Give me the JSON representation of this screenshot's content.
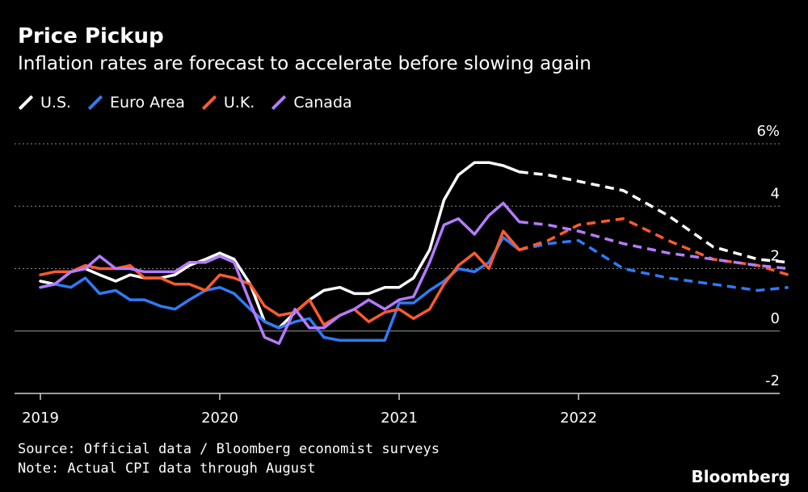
{
  "header": {
    "title": "Price Pickup",
    "subtitle": "Inflation rates are forecast to accelerate before slowing again"
  },
  "legend": [
    {
      "label": "U.S.",
      "color": "#ffffff"
    },
    {
      "label": "Euro Area",
      "color": "#2f7bf5"
    },
    {
      "label": "U.K.",
      "color": "#ff5a2e"
    },
    {
      "label": "Canada",
      "color": "#b57bff"
    }
  ],
  "footer": {
    "source": "Source: Official data / Bloomberg economist surveys",
    "note": "Note: Actual CPI data through August",
    "brand": "Bloomberg"
  },
  "chart_data": {
    "type": "line",
    "title": "Price Pickup",
    "subtitle": "Inflation rates are forecast to accelerate before slowing again",
    "xlabel": "",
    "ylabel": "",
    "xlim": [
      2019.0,
      2023.2
    ],
    "ylim": [
      -2,
      6
    ],
    "y_ticks": [
      -2,
      0,
      2,
      4,
      6
    ],
    "y_tick_labels": [
      "-2",
      "0",
      "2",
      "4",
      "6%"
    ],
    "x_ticks": [
      2019,
      2020,
      2021,
      2022
    ],
    "x_tick_labels": [
      "2019",
      "2020",
      "2021",
      "2022"
    ],
    "gridlines": "horizontal dotted",
    "legend_position": "top-left",
    "actual_through": "August 2021",
    "series": [
      {
        "name": "U.S.",
        "color": "#ffffff",
        "actual": [
          [
            2019.0,
            1.6
          ],
          [
            2019.08,
            1.5
          ],
          [
            2019.17,
            1.9
          ],
          [
            2019.25,
            2.0
          ],
          [
            2019.33,
            1.8
          ],
          [
            2019.42,
            1.6
          ],
          [
            2019.5,
            1.8
          ],
          [
            2019.58,
            1.7
          ],
          [
            2019.67,
            1.7
          ],
          [
            2019.75,
            1.8
          ],
          [
            2019.83,
            2.1
          ],
          [
            2019.92,
            2.3
          ],
          [
            2020.0,
            2.5
          ],
          [
            2020.08,
            2.3
          ],
          [
            2020.17,
            1.5
          ],
          [
            2020.25,
            0.3
          ],
          [
            2020.33,
            0.1
          ],
          [
            2020.42,
            0.6
          ],
          [
            2020.5,
            1.0
          ],
          [
            2020.58,
            1.3
          ],
          [
            2020.67,
            1.4
          ],
          [
            2020.75,
            1.2
          ],
          [
            2020.83,
            1.2
          ],
          [
            2020.92,
            1.4
          ],
          [
            2021.0,
            1.4
          ],
          [
            2021.08,
            1.7
          ],
          [
            2021.17,
            2.6
          ],
          [
            2021.25,
            4.2
          ],
          [
            2021.33,
            5.0
          ],
          [
            2021.42,
            5.4
          ],
          [
            2021.5,
            5.4
          ],
          [
            2021.58,
            5.3
          ],
          [
            2021.67,
            5.1
          ]
        ],
        "forecast": [
          [
            2021.67,
            5.1
          ],
          [
            2021.83,
            5.0
          ],
          [
            2022.0,
            4.8
          ],
          [
            2022.25,
            4.5
          ],
          [
            2022.5,
            3.7
          ],
          [
            2022.75,
            2.7
          ],
          [
            2023.0,
            2.3
          ],
          [
            2023.17,
            2.2
          ]
        ]
      },
      {
        "name": "Euro Area",
        "color": "#2f7bf5",
        "actual": [
          [
            2019.0,
            1.4
          ],
          [
            2019.08,
            1.5
          ],
          [
            2019.17,
            1.4
          ],
          [
            2019.25,
            1.7
          ],
          [
            2019.33,
            1.2
          ],
          [
            2019.42,
            1.3
          ],
          [
            2019.5,
            1.0
          ],
          [
            2019.58,
            1.0
          ],
          [
            2019.67,
            0.8
          ],
          [
            2019.75,
            0.7
          ],
          [
            2019.83,
            1.0
          ],
          [
            2019.92,
            1.3
          ],
          [
            2020.0,
            1.4
          ],
          [
            2020.08,
            1.2
          ],
          [
            2020.17,
            0.7
          ],
          [
            2020.25,
            0.3
          ],
          [
            2020.33,
            0.1
          ],
          [
            2020.42,
            0.3
          ],
          [
            2020.5,
            0.4
          ],
          [
            2020.58,
            -0.2
          ],
          [
            2020.67,
            -0.3
          ],
          [
            2020.75,
            -0.3
          ],
          [
            2020.83,
            -0.3
          ],
          [
            2020.92,
            -0.3
          ],
          [
            2021.0,
            0.9
          ],
          [
            2021.08,
            0.9
          ],
          [
            2021.17,
            1.3
          ],
          [
            2021.25,
            1.6
          ],
          [
            2021.33,
            2.0
          ],
          [
            2021.42,
            1.9
          ],
          [
            2021.5,
            2.2
          ],
          [
            2021.58,
            3.0
          ],
          [
            2021.67,
            2.6
          ]
        ],
        "forecast": [
          [
            2021.67,
            2.6
          ],
          [
            2021.83,
            2.8
          ],
          [
            2022.0,
            2.9
          ],
          [
            2022.25,
            2.0
          ],
          [
            2022.5,
            1.7
          ],
          [
            2022.75,
            1.5
          ],
          [
            2023.0,
            1.3
          ],
          [
            2023.17,
            1.4
          ]
        ]
      },
      {
        "name": "U.K.",
        "color": "#ff5a2e",
        "actual": [
          [
            2019.0,
            1.8
          ],
          [
            2019.08,
            1.9
          ],
          [
            2019.17,
            1.9
          ],
          [
            2019.25,
            2.1
          ],
          [
            2019.33,
            2.0
          ],
          [
            2019.42,
            2.0
          ],
          [
            2019.5,
            2.1
          ],
          [
            2019.58,
            1.7
          ],
          [
            2019.67,
            1.7
          ],
          [
            2019.75,
            1.5
          ],
          [
            2019.83,
            1.5
          ],
          [
            2019.92,
            1.3
          ],
          [
            2020.0,
            1.8
          ],
          [
            2020.08,
            1.7
          ],
          [
            2020.17,
            1.5
          ],
          [
            2020.25,
            0.8
          ],
          [
            2020.33,
            0.5
          ],
          [
            2020.42,
            0.6
          ],
          [
            2020.5,
            1.0
          ],
          [
            2020.58,
            0.2
          ],
          [
            2020.67,
            0.5
          ],
          [
            2020.75,
            0.7
          ],
          [
            2020.83,
            0.3
          ],
          [
            2020.92,
            0.6
          ],
          [
            2021.0,
            0.7
          ],
          [
            2021.08,
            0.4
          ],
          [
            2021.17,
            0.7
          ],
          [
            2021.25,
            1.5
          ],
          [
            2021.33,
            2.1
          ],
          [
            2021.42,
            2.5
          ],
          [
            2021.5,
            2.0
          ],
          [
            2021.58,
            3.2
          ],
          [
            2021.67,
            2.6
          ]
        ],
        "forecast": [
          [
            2021.67,
            2.6
          ],
          [
            2021.83,
            2.9
          ],
          [
            2022.0,
            3.4
          ],
          [
            2022.25,
            3.6
          ],
          [
            2022.5,
            2.9
          ],
          [
            2022.75,
            2.3
          ],
          [
            2023.0,
            2.1
          ],
          [
            2023.17,
            1.8
          ]
        ]
      },
      {
        "name": "Canada",
        "color": "#b57bff",
        "actual": [
          [
            2019.0,
            1.4
          ],
          [
            2019.08,
            1.5
          ],
          [
            2019.17,
            1.9
          ],
          [
            2019.25,
            2.0
          ],
          [
            2019.33,
            2.4
          ],
          [
            2019.42,
            2.0
          ],
          [
            2019.5,
            2.0
          ],
          [
            2019.58,
            1.9
          ],
          [
            2019.67,
            1.9
          ],
          [
            2019.75,
            1.9
          ],
          [
            2019.83,
            2.2
          ],
          [
            2019.92,
            2.2
          ],
          [
            2020.0,
            2.4
          ],
          [
            2020.08,
            2.2
          ],
          [
            2020.17,
            0.9
          ],
          [
            2020.25,
            -0.2
          ],
          [
            2020.33,
            -0.4
          ],
          [
            2020.42,
            0.7
          ],
          [
            2020.5,
            0.1
          ],
          [
            2020.58,
            0.1
          ],
          [
            2020.67,
            0.5
          ],
          [
            2020.75,
            0.7
          ],
          [
            2020.83,
            1.0
          ],
          [
            2020.92,
            0.7
          ],
          [
            2021.0,
            1.0
          ],
          [
            2021.08,
            1.1
          ],
          [
            2021.17,
            2.2
          ],
          [
            2021.25,
            3.4
          ],
          [
            2021.33,
            3.6
          ],
          [
            2021.42,
            3.1
          ],
          [
            2021.5,
            3.7
          ],
          [
            2021.58,
            4.1
          ],
          [
            2021.67,
            3.5
          ]
        ],
        "forecast": [
          [
            2021.67,
            3.5
          ],
          [
            2021.83,
            3.4
          ],
          [
            2022.0,
            3.2
          ],
          [
            2022.25,
            2.8
          ],
          [
            2022.5,
            2.5
          ],
          [
            2022.75,
            2.3
          ],
          [
            2023.0,
            2.1
          ],
          [
            2023.17,
            2.0
          ]
        ]
      }
    ]
  }
}
